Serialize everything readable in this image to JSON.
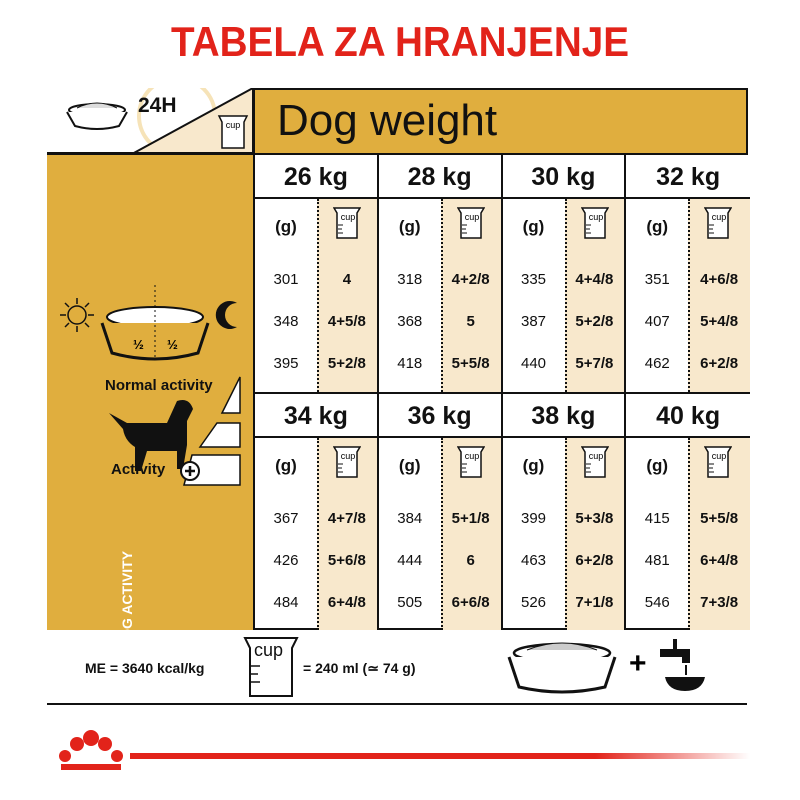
{
  "title": "TABELA ZA HRANJENJE",
  "header": {
    "duration": "24H",
    "dog_weight_label": "Dog weight",
    "cup_icon_label": "cup"
  },
  "left_panel": {
    "vertical_label": "DOG ACTIVITY",
    "half_left": "½",
    "half_right": "½",
    "normal_activity": "Normal activity",
    "activity_plus": "Activity"
  },
  "grams_header": "(g)",
  "blocks": [
    {
      "weight": "26 kg",
      "grams": [
        "301",
        "348",
        "395"
      ],
      "cups": [
        "4",
        "4+5/8",
        "5+2/8"
      ]
    },
    {
      "weight": "28 kg",
      "grams": [
        "318",
        "368",
        "418"
      ],
      "cups": [
        "4+2/8",
        "5",
        "5+5/8"
      ]
    },
    {
      "weight": "30 kg",
      "grams": [
        "335",
        "387",
        "440"
      ],
      "cups": [
        "4+4/8",
        "5+2/8",
        "5+7/8"
      ]
    },
    {
      "weight": "32 kg",
      "grams": [
        "351",
        "407",
        "462"
      ],
      "cups": [
        "4+6/8",
        "5+4/8",
        "6+2/8"
      ]
    },
    {
      "weight": "34 kg",
      "grams": [
        "367",
        "426",
        "484"
      ],
      "cups": [
        "4+7/8",
        "5+6/8",
        "6+4/8"
      ]
    },
    {
      "weight": "36 kg",
      "grams": [
        "384",
        "444",
        "505"
      ],
      "cups": [
        "5+1/8",
        "6",
        "6+6/8"
      ]
    },
    {
      "weight": "38 kg",
      "grams": [
        "399",
        "463",
        "526"
      ],
      "cups": [
        "5+3/8",
        "6+2/8",
        "7+1/8"
      ]
    },
    {
      "weight": "40 kg",
      "grams": [
        "415",
        "481",
        "546"
      ],
      "cups": [
        "5+5/8",
        "6+4/8",
        "7+3/8"
      ]
    }
  ],
  "footer": {
    "energy": "ME = 3640 kcal/kg",
    "cup_label": "cup",
    "cup_equiv": "= 240 ml (≃ 74 g)",
    "plus": "+"
  },
  "colors": {
    "title_red": "#e2231a",
    "gold": "#e0ae3e",
    "cream": "#f8e8cc"
  }
}
